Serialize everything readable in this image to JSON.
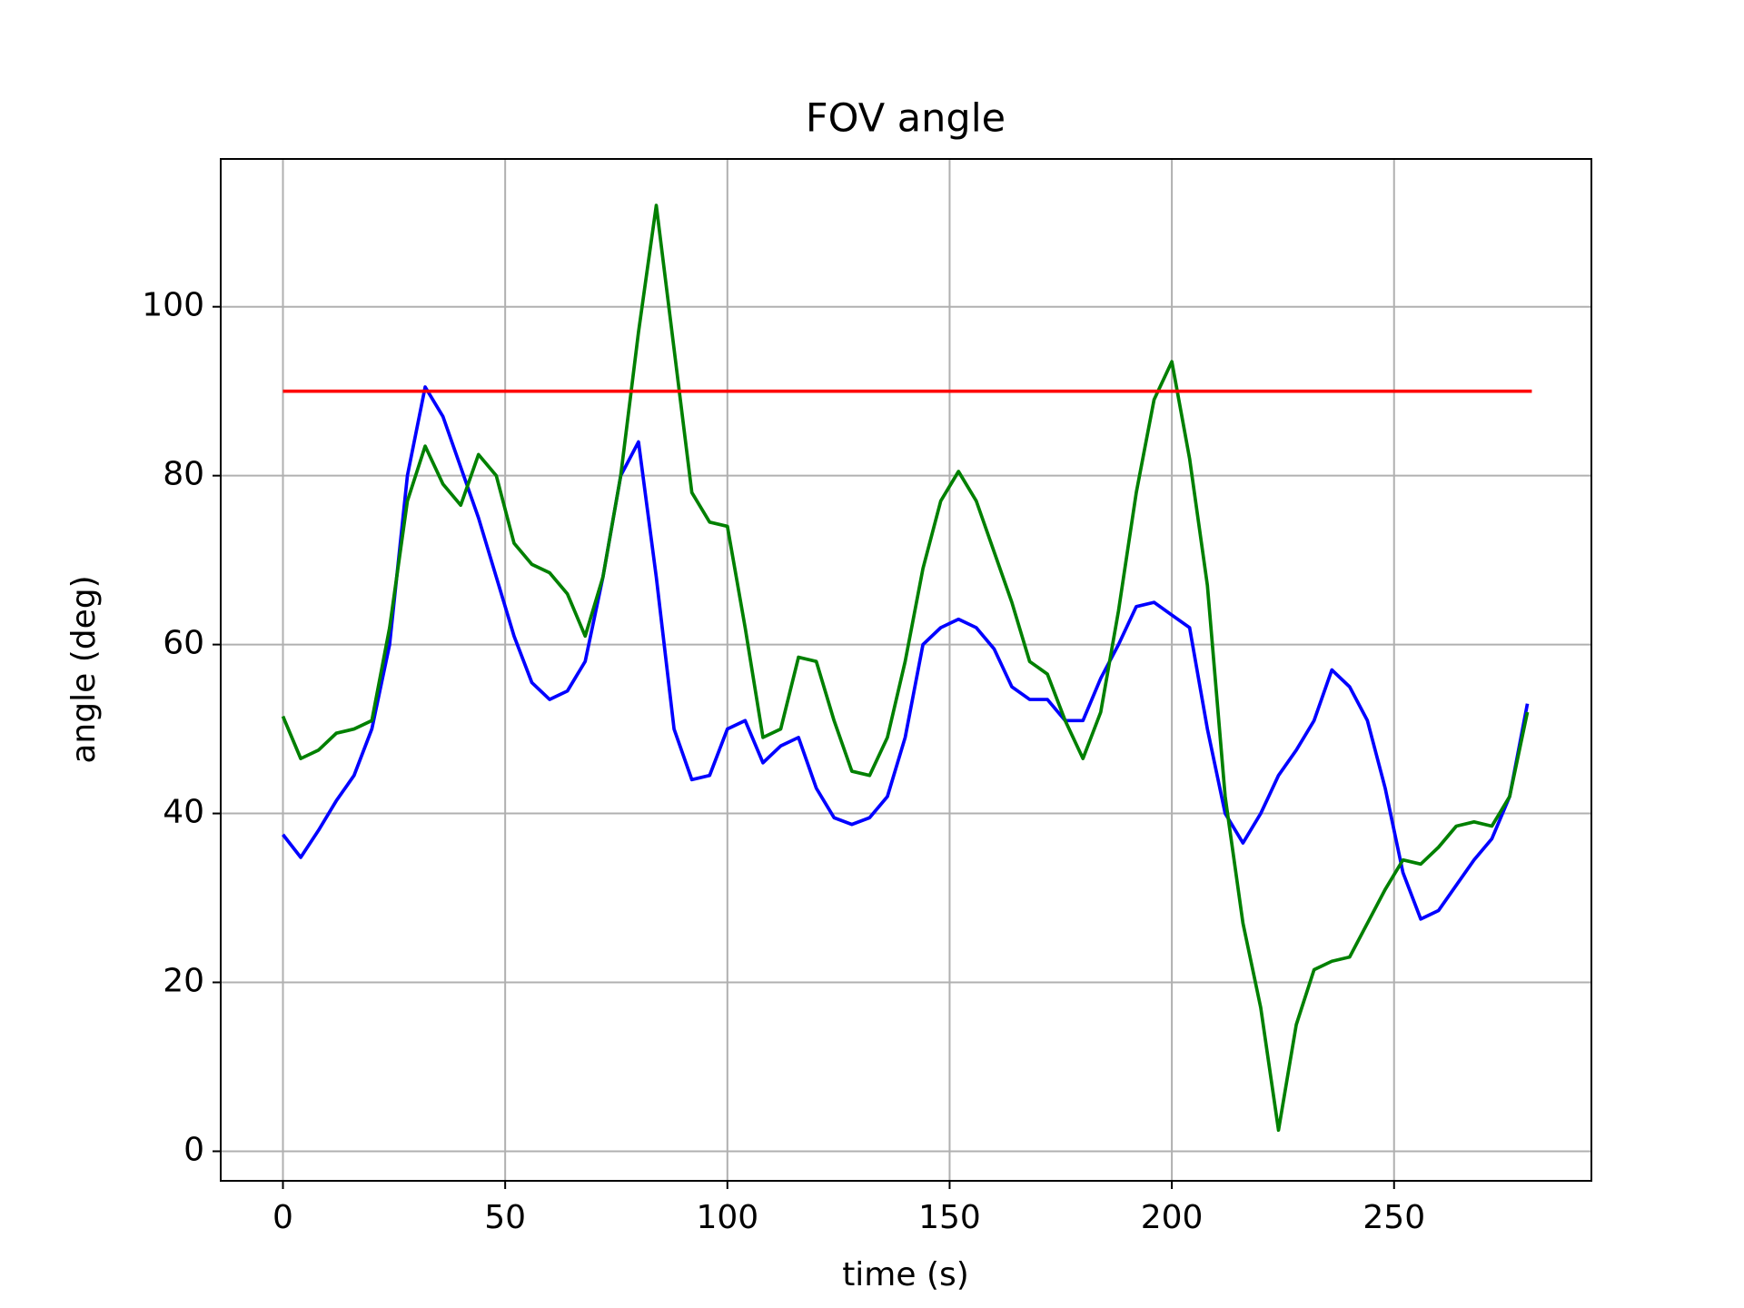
{
  "chart_data": {
    "type": "line",
    "title": "FOV angle",
    "x_label": "time (s)",
    "y_label": "angle (deg)",
    "xlim": [
      -14,
      294.4
    ],
    "ylim": [
      -3.5,
      117.5
    ],
    "xticks": [
      0,
      50,
      100,
      150,
      200,
      250
    ],
    "yticks": [
      0,
      20,
      40,
      60,
      80,
      100
    ],
    "grid": true,
    "series": [
      {
        "color": "#0000ff",
        "x": [
          0,
          4,
          8,
          12,
          16,
          20,
          24,
          28,
          32,
          36,
          40,
          44,
          48,
          52,
          56,
          60,
          64,
          68,
          72,
          76,
          80,
          84,
          88,
          92,
          96,
          100,
          104,
          108,
          112,
          116,
          120,
          124,
          128,
          132,
          136,
          140,
          144,
          148,
          152,
          156,
          160,
          164,
          168,
          172,
          176,
          180,
          184,
          188,
          192,
          196,
          200,
          204,
          208,
          212,
          216,
          220,
          224,
          228,
          232,
          236,
          240,
          244,
          248,
          252,
          256,
          260,
          264,
          268,
          272,
          276,
          280
        ],
        "values": [
          37.5,
          34.8,
          38,
          41.5,
          44.5,
          50,
          60,
          80,
          90.5,
          87,
          81,
          75,
          68,
          61,
          55.5,
          53.5,
          54.5,
          58,
          68,
          80,
          84,
          68,
          50,
          44,
          44.5,
          50,
          51,
          46,
          48,
          49,
          43,
          39.5,
          38.7,
          39.5,
          42,
          49,
          60,
          62,
          63,
          62,
          59.5,
          55,
          53.5,
          53.5,
          51,
          51,
          56,
          60,
          64.5,
          65,
          63.5,
          62,
          50,
          40,
          36.5,
          40,
          44.5,
          47.5,
          51,
          57,
          55,
          51,
          43,
          33,
          27.5,
          28.5,
          31.5,
          34.5,
          37,
          42,
          53
        ]
      },
      {
        "color": "#008000",
        "x": [
          0,
          4,
          8,
          12,
          16,
          20,
          24,
          28,
          32,
          36,
          40,
          44,
          48,
          52,
          56,
          60,
          64,
          68,
          72,
          76,
          80,
          84,
          88,
          92,
          96,
          100,
          104,
          108,
          112,
          116,
          120,
          124,
          128,
          132,
          136,
          140,
          144,
          148,
          152,
          156,
          160,
          164,
          168,
          172,
          176,
          180,
          184,
          188,
          192,
          196,
          200,
          204,
          208,
          212,
          216,
          220,
          224,
          228,
          232,
          236,
          240,
          244,
          248,
          252,
          256,
          260,
          264,
          268,
          272,
          276,
          280
        ],
        "values": [
          51.5,
          46.5,
          47.5,
          49.5,
          50,
          51,
          62,
          77,
          83.5,
          79,
          76.5,
          82.5,
          80,
          72,
          69.5,
          68.5,
          66,
          61,
          68,
          80,
          97,
          112,
          95,
          78,
          74.5,
          74,
          62,
          49,
          50,
          58.5,
          58,
          51,
          45,
          44.5,
          49,
          58,
          69,
          77,
          80.5,
          77,
          71,
          65,
          58,
          56.5,
          51,
          46.5,
          52,
          64,
          78,
          89,
          93.5,
          82,
          67,
          42,
          27,
          17,
          2.5,
          15,
          21.5,
          22.5,
          23,
          27,
          31,
          34.5,
          34,
          36,
          38.5,
          39,
          38.5,
          42,
          52
        ]
      },
      {
        "color": "#ff0000",
        "x": [
          0,
          281
        ],
        "values": [
          90,
          90
        ]
      }
    ]
  }
}
